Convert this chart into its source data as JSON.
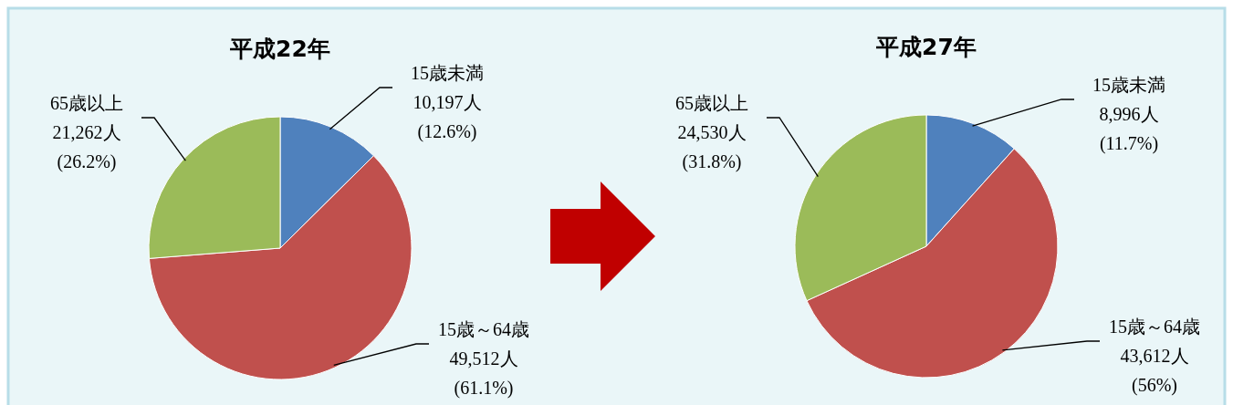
{
  "chart_data": [
    {
      "type": "pie",
      "title": "平成22年",
      "categories": [
        "15歳未満",
        "15歳～64歳",
        "65歳以上"
      ],
      "values": [
        10197,
        49512,
        21262
      ],
      "colors": [
        "#4f81bd",
        "#c0504d",
        "#9bbb59"
      ],
      "value_labels": [
        "10,197人\n(12.6%)",
        "49,512人\n(61.1%)",
        "21,262人\n(26.2%)"
      ]
    },
    {
      "type": "pie",
      "title": "平成27年",
      "categories": [
        "15歳未満",
        "15歳～64歳",
        "65歳以上"
      ],
      "values": [
        8996,
        43612,
        24530
      ],
      "colors": [
        "#4f81bd",
        "#c0504d",
        "#9bbb59"
      ],
      "value_labels": [
        "8,996人\n(11.7%)",
        "43,612人\n(56%)",
        "24,530人\n(31.8%)"
      ]
    }
  ]
}
